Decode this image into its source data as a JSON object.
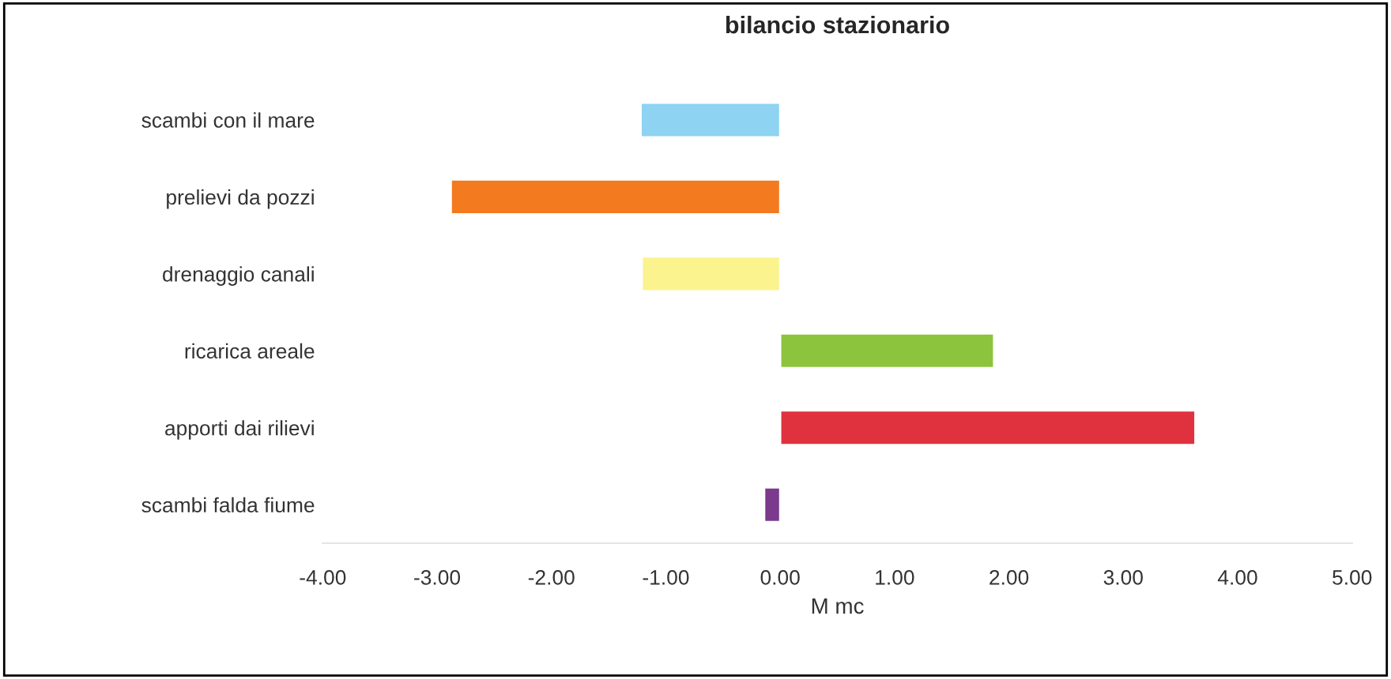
{
  "chart_data": {
    "type": "bar",
    "orientation": "horizontal",
    "title": "bilancio stazionario",
    "xlabel": "M mc",
    "categories": [
      "scambi con il mare",
      "prelievi da pozzi",
      "drenaggio canali",
      "ricarica areale",
      "apporti dai rilievi",
      "scambi falda fiume"
    ],
    "values": [
      -1.22,
      -2.88,
      -1.21,
      1.87,
      3.63,
      -0.14
    ],
    "colors": [
      "#8fd3f2",
      "#f47a20",
      "#fbf38e",
      "#8cc43e",
      "#e0323e",
      "#7a3b8c"
    ],
    "xlim": [
      -4,
      5
    ],
    "xticks": [
      {
        "value": -4,
        "label": "-4.00"
      },
      {
        "value": -3,
        "label": "-3.00"
      },
      {
        "value": -2,
        "label": "-2.00"
      },
      {
        "value": -1,
        "label": "-1.00"
      },
      {
        "value": 0,
        "label": "0.00"
      },
      {
        "value": 1,
        "label": "1.00"
      },
      {
        "value": 2,
        "label": "2.00"
      },
      {
        "value": 3,
        "label": "3.00"
      },
      {
        "value": 4,
        "label": "4.00"
      },
      {
        "value": 5,
        "label": "5.00"
      }
    ],
    "grid": false,
    "legend": false
  }
}
